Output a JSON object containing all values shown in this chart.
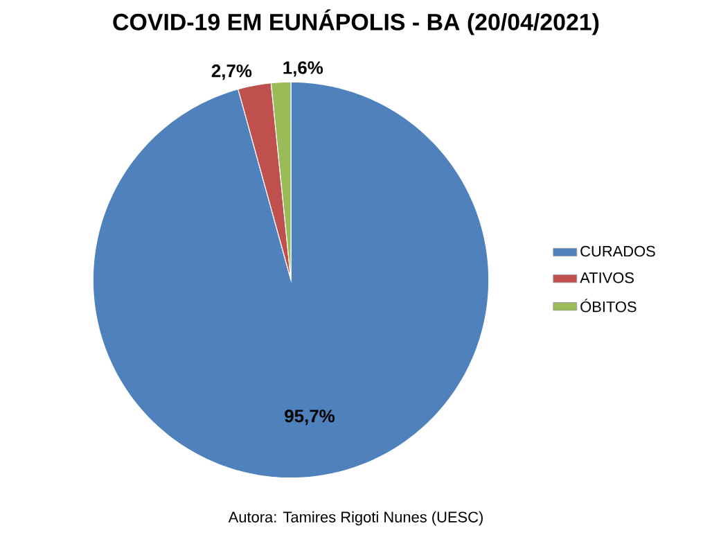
{
  "chart_data": {
    "type": "pie",
    "title": "COVID-19 EM EUNÁPOLIS - BA  (20/04/2021)",
    "categories": [
      "CURADOS",
      "ATIVOS",
      "ÓBITOS"
    ],
    "values": [
      95.7,
      2.7,
      1.6
    ],
    "value_labels": [
      "95,7%",
      "2,7%",
      "1,6%"
    ],
    "colors": [
      "#4f81bd",
      "#c0504d",
      "#9bbb59"
    ],
    "legend": "right",
    "annotations": [
      "Autora: Tamires Rigoti Nunes  (UESC)"
    ]
  }
}
